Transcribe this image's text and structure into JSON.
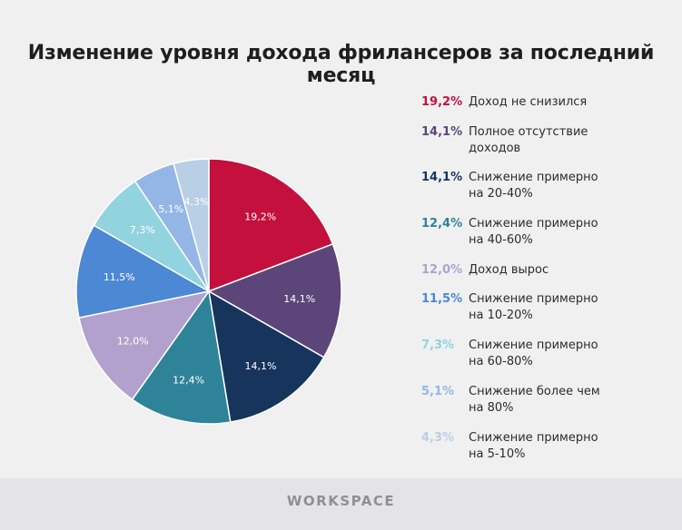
{
  "page": {
    "title": "Изменение уровня дохода фрилансеров за последний месяц",
    "brand": "WORKSPACE"
  },
  "chart_data": {
    "type": "pie",
    "title": "Изменение уровня дохода фрилансеров за последний месяц",
    "start": "12 o'clock, clockwise",
    "slices": [
      {
        "label": "Доход не снизился",
        "value": 19.2,
        "display": "19,2%",
        "color": "#c3103c"
      },
      {
        "label": "Полное отсутствие доходов",
        "value": 14.1,
        "display": "14,1%",
        "color": "#5c4679"
      },
      {
        "label": "Снижение примерно на 20-40%",
        "value": 14.1,
        "display": "14,1%",
        "color": "#17355c"
      },
      {
        "label": "Снижение примерно на 40-60%",
        "value": 12.4,
        "display": "12,4%",
        "color": "#2e8399"
      },
      {
        "label": "Доход вырос",
        "value": 12.0,
        "display": "12,0%",
        "color": "#b2a1cc"
      },
      {
        "label": "Снижение примерно на 10-20%",
        "value": 11.5,
        "display": "11,5%",
        "color": "#4c88d4"
      },
      {
        "label": "Снижение примерно на 60-80%",
        "value": 7.3,
        "display": "7,3%",
        "color": "#92d3e0"
      },
      {
        "label": "Снижение более чем на 80%",
        "value": 5.1,
        "display": "5,1%",
        "color": "#94b6e6"
      },
      {
        "label": "Снижение примерно на 5-10%",
        "value": 4.3,
        "display": "4,3%",
        "color": "#b9cfe6"
      }
    ]
  }
}
